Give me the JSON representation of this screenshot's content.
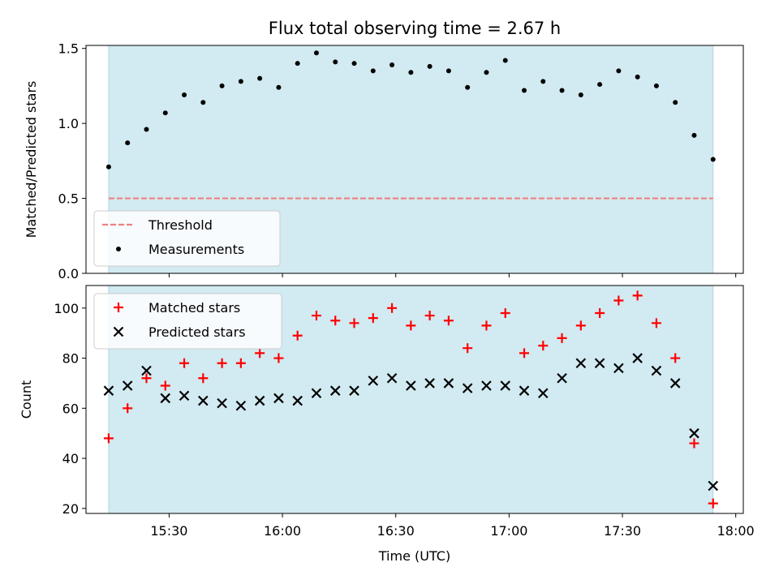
{
  "colors": {
    "shade": "#add8e6",
    "threshold": "#f08080",
    "measurement": "#000000",
    "matched": "#ff0000",
    "predicted": "#000000"
  },
  "chart_data": [
    {
      "type": "scatter",
      "title": "Flux total observing time = 2.67 h",
      "xlabel": "",
      "ylabel": "Matched/Predicted stars",
      "xlim": [
        "15:08",
        "18:02"
      ],
      "ylim": [
        0,
        1.52
      ],
      "yticks": [
        "0.0",
        "0.5",
        "1.0",
        "1.5"
      ],
      "shaded_span": [
        "15:14",
        "17:54"
      ],
      "legend_position": "lower-left",
      "threshold": {
        "name": "Threshold",
        "value": 0.5,
        "style": "dashed"
      },
      "series": [
        {
          "name": "Measurements",
          "x": [
            "15:14",
            "15:19",
            "15:24",
            "15:29",
            "15:34",
            "15:39",
            "15:44",
            "15:49",
            "15:54",
            "15:59",
            "16:04",
            "16:09",
            "16:14",
            "16:19",
            "16:24",
            "16:29",
            "16:34",
            "16:39",
            "16:44",
            "16:49",
            "16:54",
            "16:59",
            "17:04",
            "17:09",
            "17:14",
            "17:19",
            "17:24",
            "17:29",
            "17:34",
            "17:39",
            "17:44",
            "17:49",
            "17:54"
          ],
          "values": [
            0.71,
            0.87,
            0.96,
            1.07,
            1.19,
            1.14,
            1.25,
            1.28,
            1.3,
            1.24,
            1.4,
            1.47,
            1.41,
            1.4,
            1.35,
            1.39,
            1.34,
            1.38,
            1.35,
            1.24,
            1.34,
            1.42,
            1.22,
            1.28,
            1.22,
            1.19,
            1.26,
            1.35,
            1.31,
            1.25,
            1.14,
            0.92,
            0.76
          ]
        }
      ]
    },
    {
      "type": "scatter",
      "title": "",
      "xlabel": "Time (UTC)",
      "ylabel": "Count",
      "xlim": [
        "15:08",
        "18:02"
      ],
      "ylim": [
        18,
        109
      ],
      "yticks": [
        "20",
        "40",
        "60",
        "80",
        "100"
      ],
      "xticks": [
        "15:30",
        "16:00",
        "16:30",
        "17:00",
        "17:30",
        "18:00"
      ],
      "shaded_span": [
        "15:14",
        "17:54"
      ],
      "legend_position": "upper-left",
      "series": [
        {
          "name": "Matched stars",
          "marker": "+",
          "x": [
            "15:14",
            "15:19",
            "15:24",
            "15:29",
            "15:34",
            "15:39",
            "15:44",
            "15:49",
            "15:54",
            "15:59",
            "16:04",
            "16:09",
            "16:14",
            "16:19",
            "16:24",
            "16:29",
            "16:34",
            "16:39",
            "16:44",
            "16:49",
            "16:54",
            "16:59",
            "17:04",
            "17:09",
            "17:14",
            "17:19",
            "17:24",
            "17:29",
            "17:34",
            "17:39",
            "17:44",
            "17:49",
            "17:54"
          ],
          "values": [
            48,
            60,
            72,
            69,
            78,
            72,
            78,
            78,
            82,
            80,
            89,
            97,
            95,
            94,
            96,
            100,
            93,
            97,
            95,
            84,
            93,
            98,
            82,
            85,
            88,
            93,
            98,
            103,
            105,
            94,
            80,
            46,
            22
          ]
        },
        {
          "name": "Predicted stars",
          "marker": "x",
          "x": [
            "15:14",
            "15:19",
            "15:24",
            "15:29",
            "15:34",
            "15:39",
            "15:44",
            "15:49",
            "15:54",
            "15:59",
            "16:04",
            "16:09",
            "16:14",
            "16:19",
            "16:24",
            "16:29",
            "16:34",
            "16:39",
            "16:44",
            "16:49",
            "16:54",
            "16:59",
            "17:04",
            "17:09",
            "17:14",
            "17:19",
            "17:24",
            "17:29",
            "17:34",
            "17:39",
            "17:44",
            "17:49",
            "17:54"
          ],
          "values": [
            67,
            69,
            75,
            64,
            65,
            63,
            62,
            61,
            63,
            64,
            63,
            66,
            67,
            67,
            71,
            72,
            69,
            70,
            70,
            68,
            69,
            69,
            67,
            66,
            72,
            78,
            78,
            76,
            80,
            75,
            70,
            50,
            29
          ]
        }
      ]
    }
  ]
}
